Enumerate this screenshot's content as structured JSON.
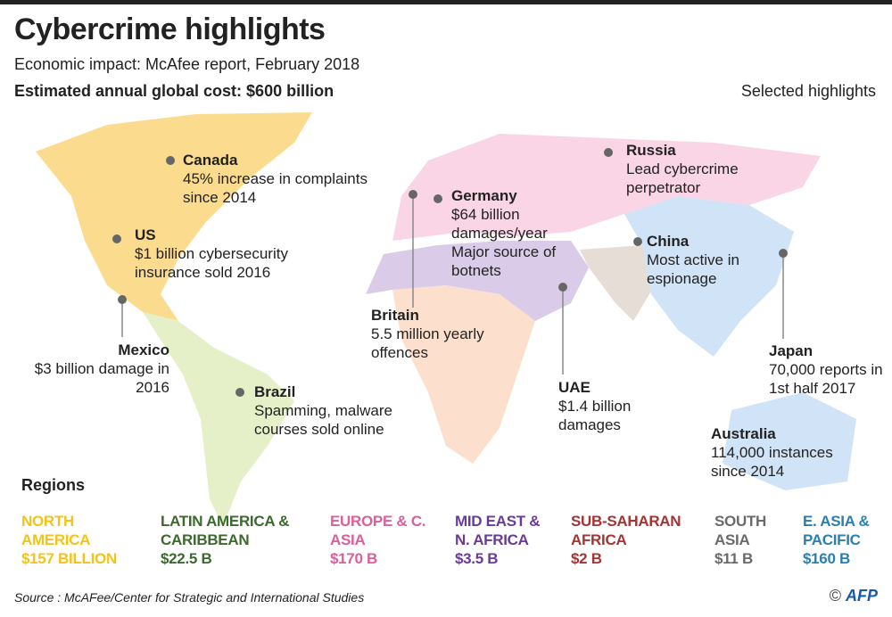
{
  "header": {
    "title": "Cybercrime highlights",
    "subtitle": "Economic impact: McAfee report, February 2018",
    "global_cost": "Estimated annual global cost: $600 billion",
    "selected_label": "Selected highlights"
  },
  "highlights": [
    {
      "country": "Canada",
      "text": "45% increase in complaints since 2014"
    },
    {
      "country": "US",
      "text": "$1 billion cybersecurity insurance sold 2016"
    },
    {
      "country": "Mexico",
      "text": "$3 billion damage in 2016"
    },
    {
      "country": "Brazil",
      "text": "Spamming, malware courses sold online"
    },
    {
      "country": "Britain",
      "text": "5.5 million yearly offences"
    },
    {
      "country": "Germany",
      "text": "$64 billion damages/year Major source of botnets"
    },
    {
      "country": "Russia",
      "text": "Lead cybercrime perpetrator"
    },
    {
      "country": "China",
      "text": "Most active in espionage"
    },
    {
      "country": "UAE",
      "text": "$1.4 billion damages"
    },
    {
      "country": "Japan",
      "text": "70,000 reports in 1st half 2017"
    },
    {
      "country": "Australia",
      "text": "114,000 instances since 2014"
    }
  ],
  "regions_label": "Regions",
  "regions": [
    {
      "name": "NORTH AMERICA",
      "value": "$157 BILLION",
      "color": "#f2c31a",
      "fill": "#fbdc8e"
    },
    {
      "name": "LATIN AMERICA & CARIBBEAN",
      "value": "$22.5 B",
      "color": "#3b6a2c",
      "fill": "#e6f0c8"
    },
    {
      "name": "EUROPE & C. ASIA",
      "value": "$170 B",
      "color": "#d9609a",
      "fill": "#f9d5e5"
    },
    {
      "name": "MID EAST & N. AFRICA",
      "value": "$3.5 B",
      "color": "#6b3a98",
      "fill": "#dacbe8"
    },
    {
      "name": "SUB-SAHARAN AFRICA",
      "value": "$2 B",
      "color": "#a43434",
      "fill": "#fcdfcc"
    },
    {
      "name": "SOUTH ASIA",
      "value": "$11 B",
      "color": "#6a6a6a",
      "fill": "#e6ded6"
    },
    {
      "name": "E. ASIA & PACIFIC",
      "value": "$160 B",
      "color": "#2a7fb2",
      "fill": "#d1e3f6"
    }
  ],
  "source": "Source : McAFee/Center for Strategic and International Studies",
  "credit": "AFP"
}
